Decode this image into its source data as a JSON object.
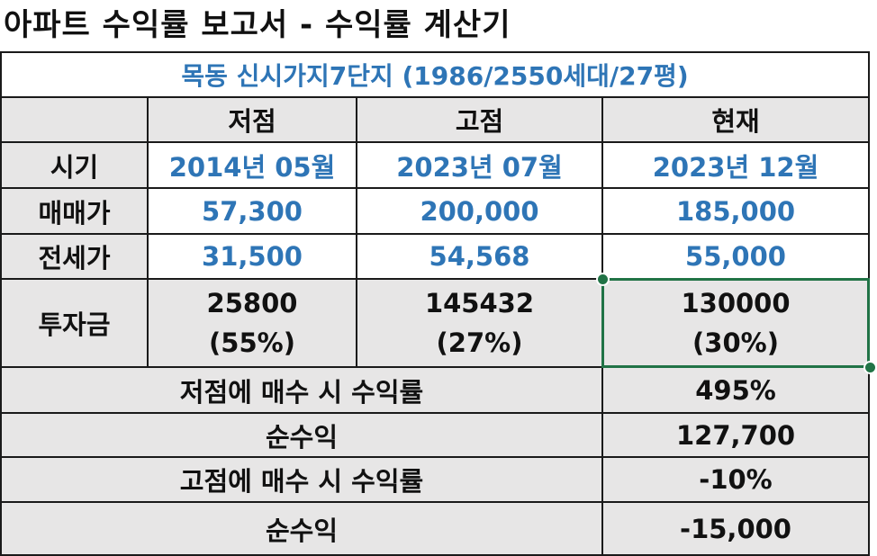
{
  "title": "아파트 수익률 보고서 - 수익률 계산기",
  "subtitle": "목동 신시가지7단지 (1986/2550세대/27평)",
  "header": {
    "col1": "저점",
    "col2": "고점",
    "col3": "현재"
  },
  "rows": {
    "period": {
      "label": "시기",
      "low": "2014년 05월",
      "high": "2023년 07월",
      "now": "2023년 12월"
    },
    "sale_price": {
      "label": "매매가",
      "low": "57,300",
      "high": "200,000",
      "now": "185,000"
    },
    "jeonse_price": {
      "label": "전세가",
      "low": "31,500",
      "high": "54,568",
      "now": "55,000"
    },
    "investment": {
      "label": "투자금",
      "low": "25800",
      "low_pct": "(55%)",
      "high": "145432",
      "high_pct": "(27%)",
      "now": "130000",
      "now_pct": "(30%)"
    }
  },
  "summary": [
    {
      "label": "저점에 매수 시 수익률",
      "value": "495%"
    },
    {
      "label": "순수익",
      "value": "127,700"
    },
    {
      "label": "고점에 매수 시 수익률",
      "value": "-10%"
    },
    {
      "label": "순수익",
      "value": "-15,000"
    }
  ],
  "colors": {
    "accent_blue": "#2e75b6",
    "header_gray": "#e7e6e6",
    "selection_green": "#217346"
  }
}
